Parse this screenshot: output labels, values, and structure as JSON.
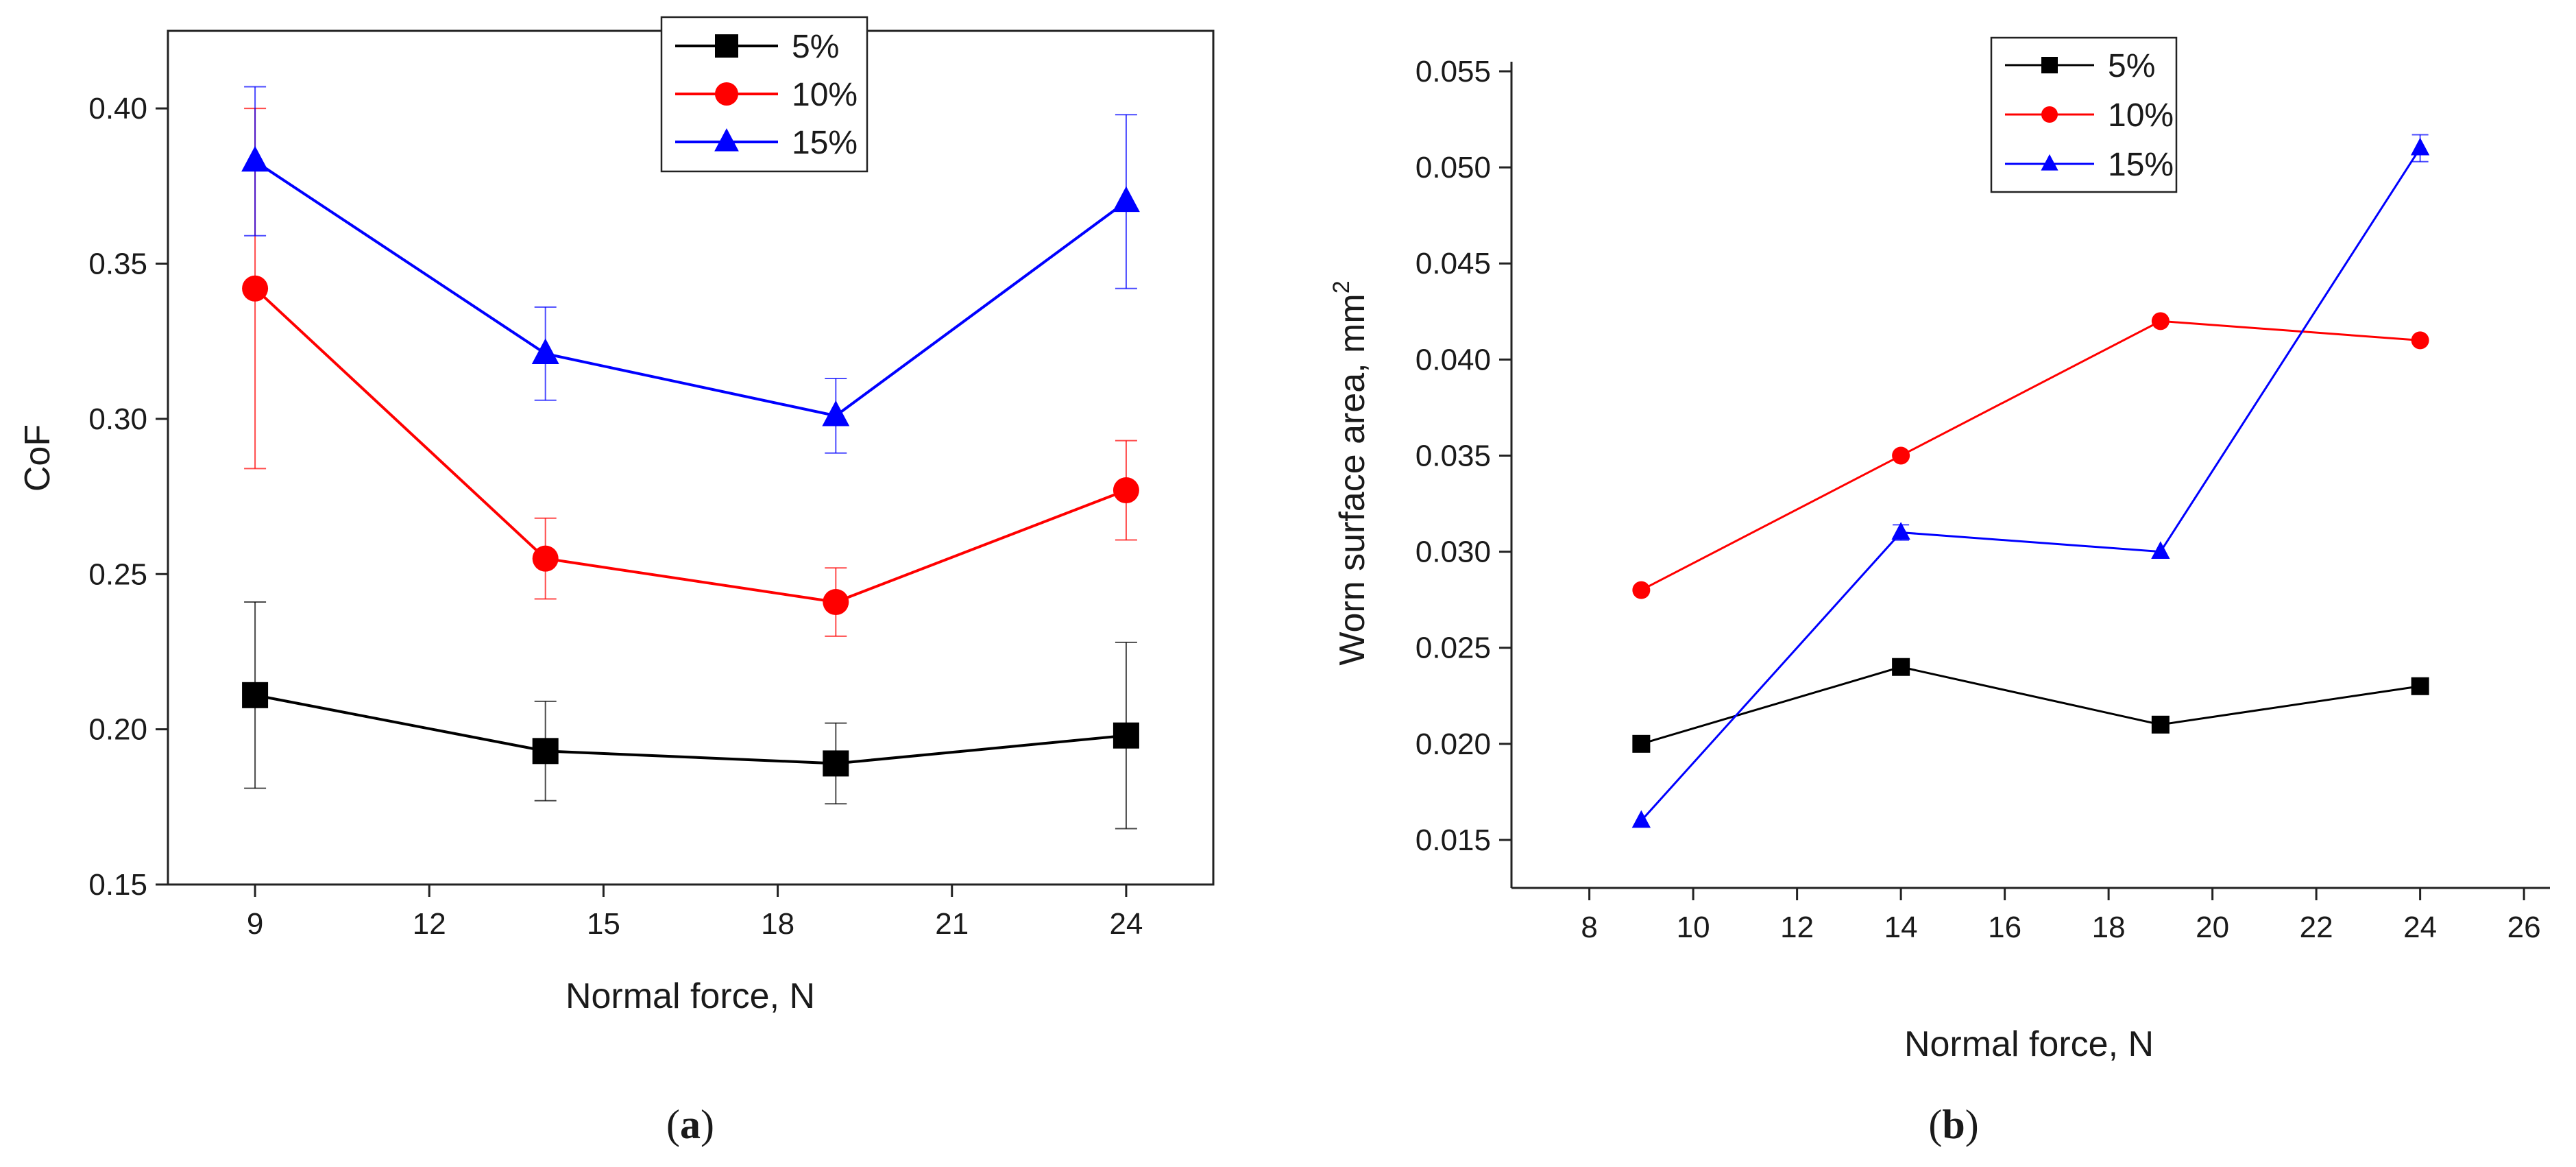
{
  "chart_data": [
    {
      "type": "line",
      "panel_label": "a",
      "xlabel": "Normal force, N",
      "ylabel": "CoF",
      "xlim": [
        7.5,
        25.5
      ],
      "ylim": [
        0.15,
        0.425
      ],
      "xticks": [
        9,
        12,
        15,
        18,
        21,
        24
      ],
      "yticks": [
        0.15,
        0.2,
        0.25,
        0.3,
        0.35,
        0.4
      ],
      "ytick_labels": [
        "0.15",
        "0.20",
        "0.25",
        "0.30",
        "0.35",
        "0.40"
      ],
      "legend_position": "top-center",
      "error_bars": true,
      "series": [
        {
          "name": "5%",
          "color": "#000000",
          "marker": "square",
          "x": [
            9,
            14,
            19,
            24
          ],
          "y": [
            0.211,
            0.193,
            0.189,
            0.198
          ],
          "err": [
            0.03,
            0.016,
            0.013,
            0.03
          ]
        },
        {
          "name": "10%",
          "color": "#ff0000",
          "marker": "circle",
          "x": [
            9,
            14,
            19,
            24
          ],
          "y": [
            0.342,
            0.255,
            0.241,
            0.277
          ],
          "err": [
            0.058,
            0.013,
            0.011,
            0.016
          ]
        },
        {
          "name": "15%",
          "color": "#0000ff",
          "marker": "triangle",
          "x": [
            9,
            14,
            19,
            24
          ],
          "y": [
            0.383,
            0.321,
            0.301,
            0.37
          ],
          "err": [
            0.024,
            0.015,
            0.012,
            0.028
          ]
        }
      ]
    },
    {
      "type": "line",
      "panel_label": "b",
      "xlabel": "Normal force, N",
      "ylabel": "Worn surface area, mm",
      "ylabel_sup": "2",
      "xlim": [
        6.5,
        26.5
      ],
      "ylim": [
        0.0125,
        0.0555
      ],
      "xticks": [
        8,
        10,
        12,
        14,
        16,
        18,
        20,
        22,
        24,
        26
      ],
      "yticks": [
        0.015,
        0.02,
        0.025,
        0.03,
        0.035,
        0.04,
        0.045,
        0.05,
        0.055
      ],
      "ytick_labels": [
        "0.015",
        "0.020",
        "0.025",
        "0.030",
        "0.035",
        "0.040",
        "0.045",
        "0.050",
        "0.055"
      ],
      "legend_position": "top-center",
      "error_bars": true,
      "series": [
        {
          "name": "5%",
          "color": "#000000",
          "marker": "square",
          "x": [
            9,
            14,
            19,
            24
          ],
          "y": [
            0.02,
            0.024,
            0.021,
            0.023
          ],
          "err": [
            0,
            0,
            0,
            0
          ]
        },
        {
          "name": "10%",
          "color": "#ff0000",
          "marker": "circle",
          "x": [
            9,
            14,
            19,
            24
          ],
          "y": [
            0.028,
            0.035,
            0.042,
            0.041
          ],
          "err": [
            0,
            0,
            0,
            0
          ]
        },
        {
          "name": "15%",
          "color": "#0000ff",
          "marker": "triangle",
          "x": [
            9,
            14,
            19,
            24
          ],
          "y": [
            0.016,
            0.031,
            0.03,
            0.051
          ],
          "err": [
            0,
            0.0004,
            0,
            0.0007
          ]
        }
      ]
    }
  ]
}
